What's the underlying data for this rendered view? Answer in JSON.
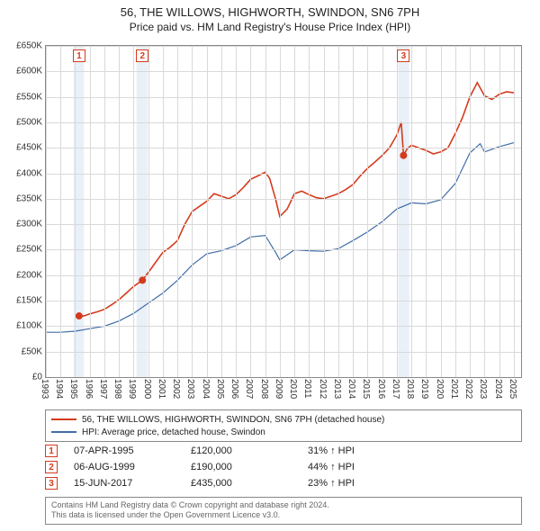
{
  "titles": {
    "line1": "56, THE WILLOWS, HIGHWORTH, SWINDON, SN6 7PH",
    "line2": "Price paid vs. HM Land Registry's House Price Index (HPI)"
  },
  "chart": {
    "type": "line",
    "background_color": "#ffffff",
    "grid_color": "#d9d9d9",
    "axis_color": "#888888",
    "x": {
      "min": 1993,
      "max": 2025.5,
      "ticks": [
        1993,
        1994,
        1995,
        1996,
        1997,
        1998,
        1999,
        2000,
        2001,
        2002,
        2003,
        2004,
        2005,
        2006,
        2007,
        2008,
        2009,
        2010,
        2011,
        2012,
        2013,
        2014,
        2015,
        2016,
        2017,
        2018,
        2019,
        2020,
        2021,
        2022,
        2023,
        2024,
        2025
      ]
    },
    "y": {
      "min": 0,
      "max": 650000,
      "tick_step": 50000,
      "prefix": "£",
      "labels": [
        "£0",
        "£50K",
        "£100K",
        "£150K",
        "£200K",
        "£250K",
        "£300K",
        "£350K",
        "£400K",
        "£450K",
        "£500K",
        "£550K",
        "£600K",
        "£650K"
      ]
    },
    "series": [
      {
        "name": "56, THE WILLOWS, HIGHWORTH, SWINDON, SN6 7PH (detached house)",
        "color": "#d43b1e",
        "width": 1.6,
        "points": [
          [
            1995.27,
            120000
          ],
          [
            1995.6,
            120000
          ],
          [
            1996,
            124000
          ],
          [
            1996.5,
            128000
          ],
          [
            1997,
            133000
          ],
          [
            1997.5,
            142000
          ],
          [
            1998,
            152000
          ],
          [
            1998.5,
            165000
          ],
          [
            1999,
            178000
          ],
          [
            1999.6,
            190000
          ],
          [
            2000,
            205000
          ],
          [
            2000.5,
            225000
          ],
          [
            2001,
            245000
          ],
          [
            2001.5,
            255000
          ],
          [
            2002,
            268000
          ],
          [
            2002.5,
            300000
          ],
          [
            2003,
            325000
          ],
          [
            2003.5,
            335000
          ],
          [
            2004,
            345000
          ],
          [
            2004.5,
            360000
          ],
          [
            2005,
            355000
          ],
          [
            2005.5,
            350000
          ],
          [
            2006,
            358000
          ],
          [
            2006.5,
            372000
          ],
          [
            2007,
            388000
          ],
          [
            2007.5,
            395000
          ],
          [
            2008,
            402000
          ],
          [
            2008.3,
            390000
          ],
          [
            2008.7,
            350000
          ],
          [
            2009,
            315000
          ],
          [
            2009.5,
            330000
          ],
          [
            2010,
            360000
          ],
          [
            2010.5,
            365000
          ],
          [
            2011,
            358000
          ],
          [
            2011.5,
            352000
          ],
          [
            2012,
            350000
          ],
          [
            2012.5,
            355000
          ],
          [
            2013,
            360000
          ],
          [
            2013.5,
            368000
          ],
          [
            2014,
            378000
          ],
          [
            2014.5,
            395000
          ],
          [
            2015,
            410000
          ],
          [
            2015.5,
            422000
          ],
          [
            2016,
            435000
          ],
          [
            2016.5,
            450000
          ],
          [
            2017,
            475000
          ],
          [
            2017.3,
            500000
          ],
          [
            2017.46,
            435000
          ],
          [
            2017.7,
            448000
          ],
          [
            2018,
            455000
          ],
          [
            2018.5,
            450000
          ],
          [
            2019,
            445000
          ],
          [
            2019.5,
            438000
          ],
          [
            2020,
            442000
          ],
          [
            2020.5,
            450000
          ],
          [
            2021,
            478000
          ],
          [
            2021.5,
            510000
          ],
          [
            2022,
            550000
          ],
          [
            2022.5,
            578000
          ],
          [
            2023,
            552000
          ],
          [
            2023.5,
            545000
          ],
          [
            2024,
            555000
          ],
          [
            2024.5,
            560000
          ],
          [
            2025,
            558000
          ]
        ]
      },
      {
        "name": "HPI: Average price, detached house, Swindon",
        "color": "#416da8",
        "width": 1.2,
        "points": [
          [
            1993,
            88000
          ],
          [
            1994,
            88000
          ],
          [
            1995,
            90000
          ],
          [
            1996,
            95000
          ],
          [
            1997,
            100000
          ],
          [
            1998,
            110000
          ],
          [
            1999,
            125000
          ],
          [
            2000,
            145000
          ],
          [
            2001,
            165000
          ],
          [
            2002,
            190000
          ],
          [
            2003,
            220000
          ],
          [
            2004,
            242000
          ],
          [
            2005,
            248000
          ],
          [
            2006,
            258000
          ],
          [
            2007,
            275000
          ],
          [
            2008,
            278000
          ],
          [
            2008.7,
            245000
          ],
          [
            2009,
            230000
          ],
          [
            2010,
            250000
          ],
          [
            2011,
            248000
          ],
          [
            2012,
            247000
          ],
          [
            2013,
            252000
          ],
          [
            2014,
            268000
          ],
          [
            2015,
            285000
          ],
          [
            2016,
            305000
          ],
          [
            2017,
            330000
          ],
          [
            2018,
            342000
          ],
          [
            2019,
            340000
          ],
          [
            2020,
            348000
          ],
          [
            2021,
            380000
          ],
          [
            2022,
            440000
          ],
          [
            2022.7,
            458000
          ],
          [
            2023,
            442000
          ],
          [
            2024,
            452000
          ],
          [
            2025,
            460000
          ]
        ]
      }
    ],
    "sale_markers": {
      "color": "#d43b1e",
      "radius": 4,
      "items": [
        {
          "n": "1",
          "x": 1995.27,
          "y": 120000
        },
        {
          "n": "2",
          "x": 1999.6,
          "y": 190000
        },
        {
          "n": "3",
          "x": 2017.46,
          "y": 435000
        }
      ]
    },
    "shade_bands": {
      "color": "#dbe6f3",
      "opacity": 0.6,
      "items": [
        {
          "from": 1994.9,
          "to": 1995.6
        },
        {
          "from": 1999.2,
          "to": 1999.95
        },
        {
          "from": 2017.1,
          "to": 2017.85
        }
      ]
    }
  },
  "legend": {
    "items": [
      {
        "color": "#d43b1e",
        "label": "56, THE WILLOWS, HIGHWORTH, SWINDON, SN6 7PH (detached house)"
      },
      {
        "color": "#416da8",
        "label": "HPI: Average price, detached house, Swindon"
      }
    ]
  },
  "sales": [
    {
      "n": "1",
      "date": "07-APR-1995",
      "price": "£120,000",
      "pct": "31% ↑ HPI"
    },
    {
      "n": "2",
      "date": "06-AUG-1999",
      "price": "£190,000",
      "pct": "44% ↑ HPI"
    },
    {
      "n": "3",
      "date": "15-JUN-2017",
      "price": "£435,000",
      "pct": "23% ↑ HPI"
    }
  ],
  "attribution": {
    "line1": "Contains HM Land Registry data © Crown copyright and database right 2024.",
    "line2": "This data is licensed under the Open Government Licence v3.0."
  }
}
